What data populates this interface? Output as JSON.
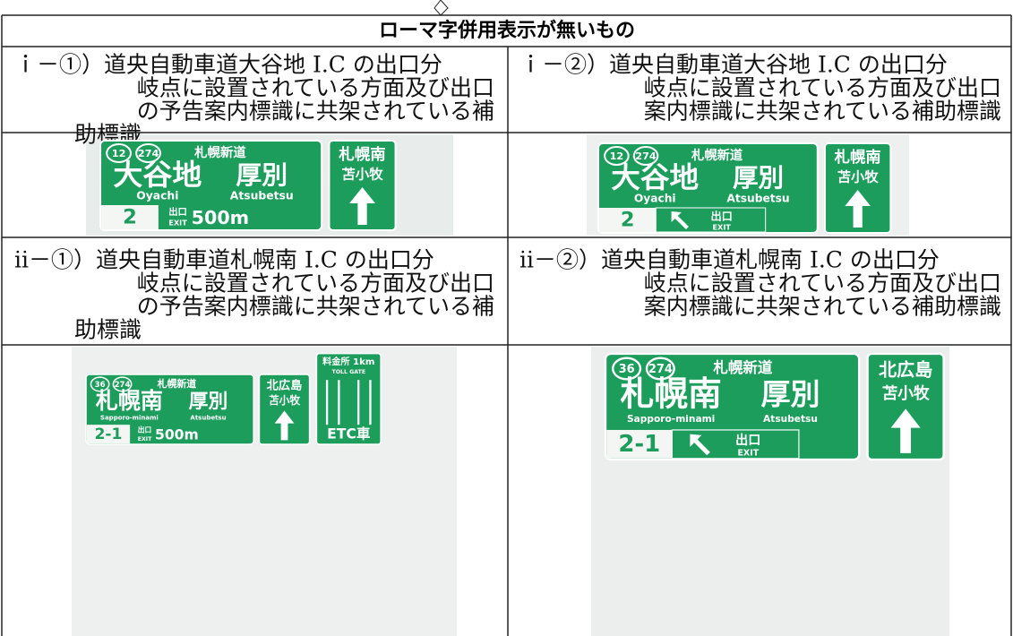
{
  "table": {
    "title": "ローマ字併用表示が無いもの",
    "captions": [
      [
        "ｉ－①）道央自動車道大谷地 I.C の出口分",
        "岐点に設置されている方面及び出口",
        "の予告案内標識に共架されている補",
        "助標識"
      ],
      [
        "ｉ－②）道央自動車道大谷地 I.C の出口分",
        "岐点に設置されている方面及び出口",
        "案内標識に共架されている補助標識"
      ],
      [
        "ⅱ－①）道央自動車道札幌南 I.C の出口分",
        "岐点に設置されている方面及び出口",
        "の予告案内標識に共架されている補",
        "助標識"
      ],
      [
        "ⅱ－②）道央自動車道札幌南 I.C の出口分",
        "岐点に設置されている方面及び出口",
        "案内標識に共架されている補助標識"
      ]
    ],
    "signs": [
      {
        "routes": [
          "12",
          "274"
        ],
        "road": "札幌新道",
        "places": [
          "大谷地",
          "厚別"
        ],
        "romaji": [
          "Oyachi",
          "Atsubetsu"
        ],
        "exit_no": "2",
        "exit_ja": "出口",
        "exit_en": "EXIT",
        "distance": "500m",
        "side": [
          "札幌南",
          "苫小牧"
        ]
      },
      {
        "routes": [
          "12",
          "274"
        ],
        "road": "札幌新道",
        "places": [
          "大谷地",
          "厚別"
        ],
        "romaji": [
          "Oyachi",
          "Atsubetsu"
        ],
        "exit_no": "2",
        "exit_ja": "出口",
        "exit_en": "EXIT",
        "side": [
          "札幌南",
          "苫小牧"
        ]
      },
      {
        "routes": [
          "36",
          "274"
        ],
        "road": "札幌新道",
        "places": [
          "札幌南",
          "厚別"
        ],
        "romaji": [
          "Sapporo-minami",
          "Atsubetsu"
        ],
        "exit_no": "2-1",
        "exit_ja": "出口",
        "exit_en": "EXIT",
        "distance": "500m",
        "side": [
          "北広島",
          "苫小牧"
        ],
        "toll": {
          "label": "料金所 1km",
          "en": "TOLL GATE",
          "etc": "ETC車"
        }
      },
      {
        "routes": [
          "36",
          "274"
        ],
        "road": "札幌新道",
        "places": [
          "札幌南",
          "厚別"
        ],
        "romaji": [
          "Sapporo-minami",
          "Atsubetsu"
        ],
        "exit_no": "2-1",
        "exit_ja": "出口",
        "exit_en": "EXIT",
        "side": [
          "北広島",
          "苫小牧"
        ]
      }
    ]
  }
}
